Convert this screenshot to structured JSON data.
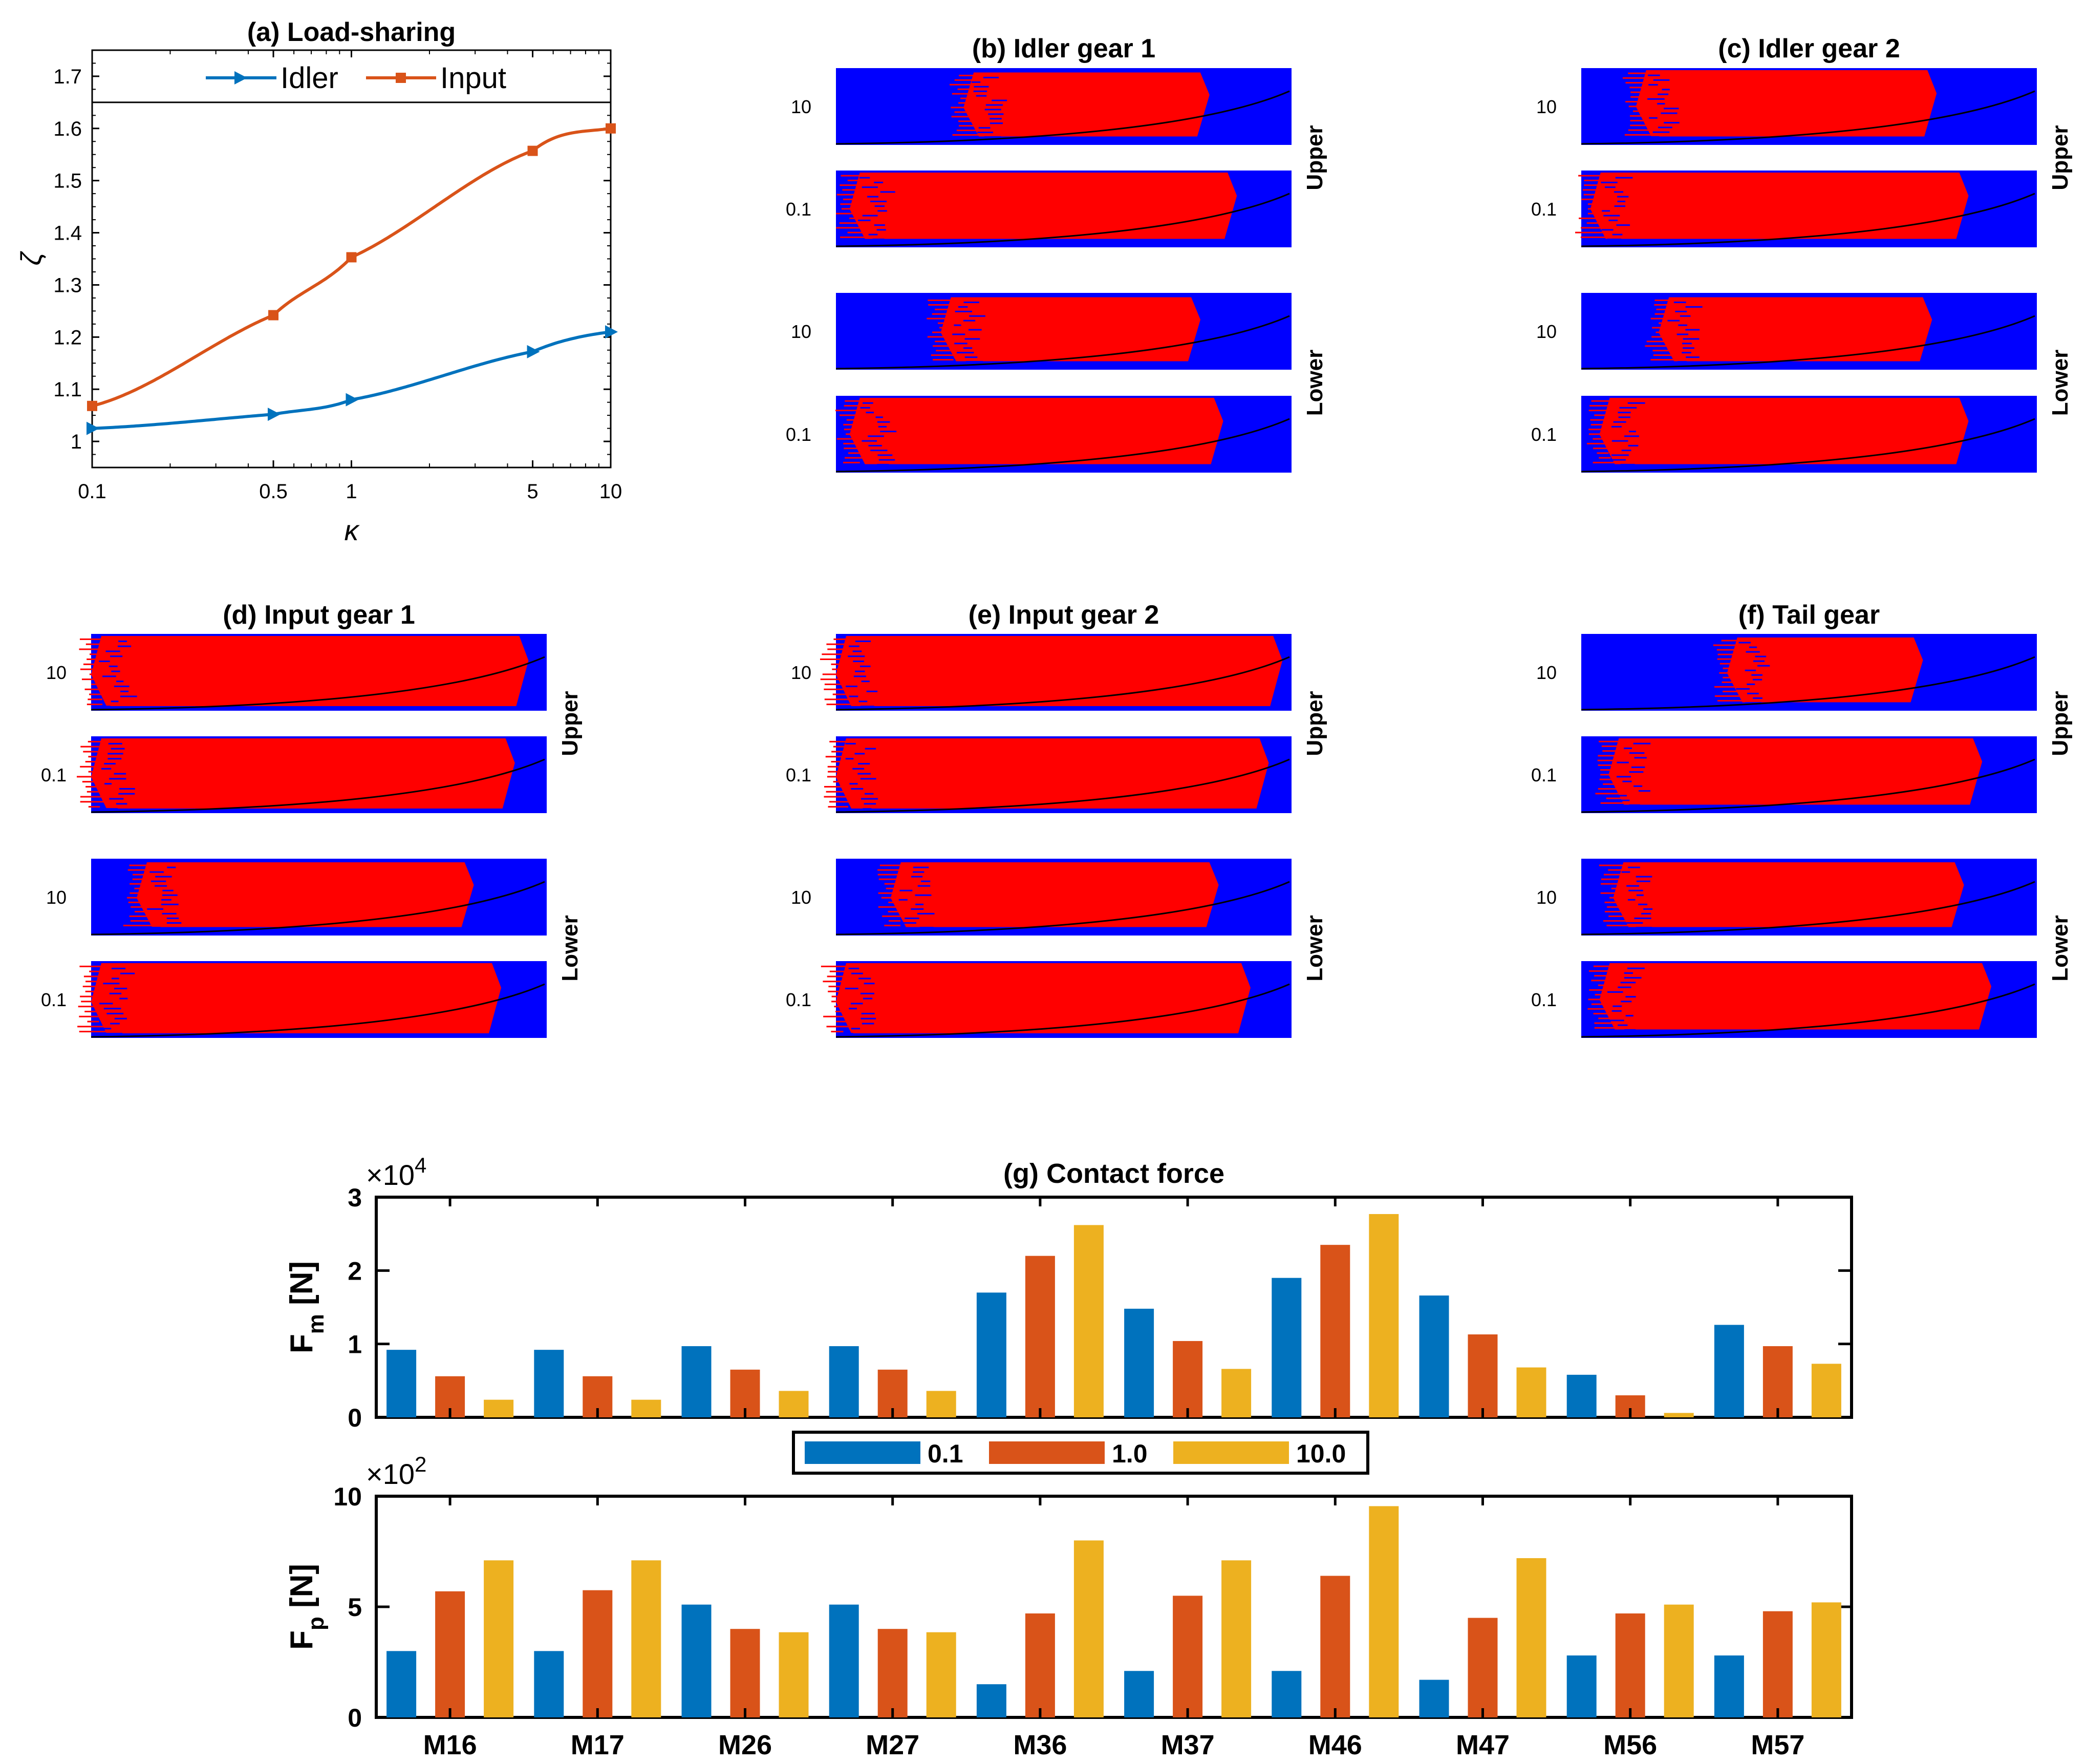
{
  "figure": {
    "colors": {
      "idler": "#0072BD",
      "input": "#D95319",
      "bar_series": [
        "#0072BD",
        "#D95319",
        "#EDB120"
      ],
      "map_background": "#0000FF",
      "map_contact": "#FF0000"
    }
  },
  "contact_maps": {
    "row_labels": [
      "10",
      "0.1",
      "10",
      "0.1"
    ],
    "group_labels": [
      "Upper",
      "Lower"
    ],
    "panels": [
      {
        "id": "b",
        "title": "(b) Idler gear 1",
        "regions": [
          [
            0.28,
            0.82,
            0.15,
            0.85
          ],
          [
            0.03,
            0.88,
            0.0,
            0.85
          ],
          [
            0.23,
            0.8,
            0.15,
            0.85
          ],
          [
            0.03,
            0.85,
            0.0,
            0.85
          ]
        ]
      },
      {
        "id": "c",
        "title": "(c) Idler gear 2",
        "regions": [
          [
            0.12,
            0.78,
            0.0,
            0.85
          ],
          [
            0.02,
            0.85,
            0.0,
            0.85
          ],
          [
            0.17,
            0.77,
            0.15,
            0.85
          ],
          [
            0.04,
            0.85,
            0.0,
            0.85
          ]
        ]
      },
      {
        "id": "d",
        "title": "(d) Input gear 1",
        "regions": [
          [
            0.0,
            0.96,
            0.0,
            0.9
          ],
          [
            0.0,
            0.93,
            0.0,
            0.9
          ],
          [
            0.1,
            0.84,
            0.1,
            0.85
          ],
          [
            0.0,
            0.9,
            0.0,
            0.9
          ]
        ]
      },
      {
        "id": "e",
        "title": "(e) Input gear 2",
        "regions": [
          [
            0.0,
            0.98,
            0.0,
            0.9
          ],
          [
            0.0,
            0.95,
            0.0,
            0.9
          ],
          [
            0.12,
            0.84,
            0.1,
            0.85
          ],
          [
            0.0,
            0.91,
            0.0,
            0.9
          ]
        ]
      },
      {
        "id": "f",
        "title": "(f) Tail gear",
        "regions": [
          [
            0.32,
            0.75,
            0.1,
            0.85
          ],
          [
            0.06,
            0.88,
            0.0,
            0.85
          ],
          [
            0.07,
            0.84,
            0.1,
            0.85
          ],
          [
            0.04,
            0.9,
            0.0,
            0.85
          ]
        ]
      }
    ]
  },
  "chart_data": [
    {
      "id": "a",
      "type": "line",
      "title": "(a) Load-sharing",
      "xlabel": "κ",
      "ylabel": "ζ",
      "xscale": "log",
      "xlim": [
        0.1,
        10
      ],
      "ylim": [
        0.95,
        1.75
      ],
      "xticks": [
        "0.1",
        "0.5",
        "1",
        "5",
        "10"
      ],
      "yticks": [
        "1",
        "1.1",
        "1.2",
        "1.3",
        "1.4",
        "1.5",
        "1.6",
        "1.7"
      ],
      "x": [
        0.1,
        0.5,
        1,
        5,
        10
      ],
      "series": [
        {
          "name": "Idler",
          "values": [
            1.025,
            1.052,
            1.08,
            1.172,
            1.21
          ]
        },
        {
          "name": "Input",
          "values": [
            1.068,
            1.242,
            1.353,
            1.557,
            1.6
          ]
        }
      ],
      "reference_line": 1.65,
      "legend": "top-center"
    },
    {
      "id": "g-top",
      "type": "bar",
      "title": "(g) Contact force",
      "ylabel": "F_m [N]",
      "exponent_label": "×10^4",
      "ylim": [
        0,
        3
      ],
      "yticks": [
        "0",
        "1",
        "2",
        "3"
      ],
      "categories": [
        "M16",
        "M17",
        "M26",
        "M27",
        "M36",
        "M37",
        "M46",
        "M47",
        "M56",
        "M57"
      ],
      "series": [
        {
          "name": "0.1",
          "values": [
            0.92,
            0.92,
            0.97,
            0.97,
            1.7,
            1.48,
            1.9,
            1.66,
            0.58,
            1.26
          ]
        },
        {
          "name": "1.0",
          "values": [
            0.56,
            0.56,
            0.65,
            0.65,
            2.2,
            1.04,
            2.35,
            1.13,
            0.3,
            0.97
          ]
        },
        {
          "name": "10.0",
          "values": [
            0.24,
            0.24,
            0.36,
            0.36,
            2.62,
            0.66,
            2.77,
            0.68,
            0.06,
            0.73
          ]
        }
      ],
      "legend": "bottom-center"
    },
    {
      "id": "g-bottom",
      "type": "bar",
      "ylabel": "F_p [N]",
      "exponent_label": "×10^2",
      "ylim": [
        0,
        10
      ],
      "yticks": [
        "0",
        "5",
        "10"
      ],
      "categories": [
        "M16",
        "M17",
        "M26",
        "M27",
        "M36",
        "M37",
        "M46",
        "M47",
        "M56",
        "M57"
      ],
      "series": [
        {
          "name": "0.1",
          "values": [
            3.0,
            3.0,
            5.1,
            5.1,
            1.5,
            2.1,
            2.1,
            1.7,
            2.8,
            2.8
          ]
        },
        {
          "name": "1.0",
          "values": [
            5.7,
            5.75,
            4.0,
            4.0,
            4.7,
            5.5,
            6.4,
            4.5,
            4.7,
            4.8
          ]
        },
        {
          "name": "10.0",
          "values": [
            7.1,
            7.1,
            3.85,
            3.85,
            8.0,
            7.1,
            9.55,
            7.2,
            5.1,
            5.2
          ]
        }
      ]
    }
  ]
}
